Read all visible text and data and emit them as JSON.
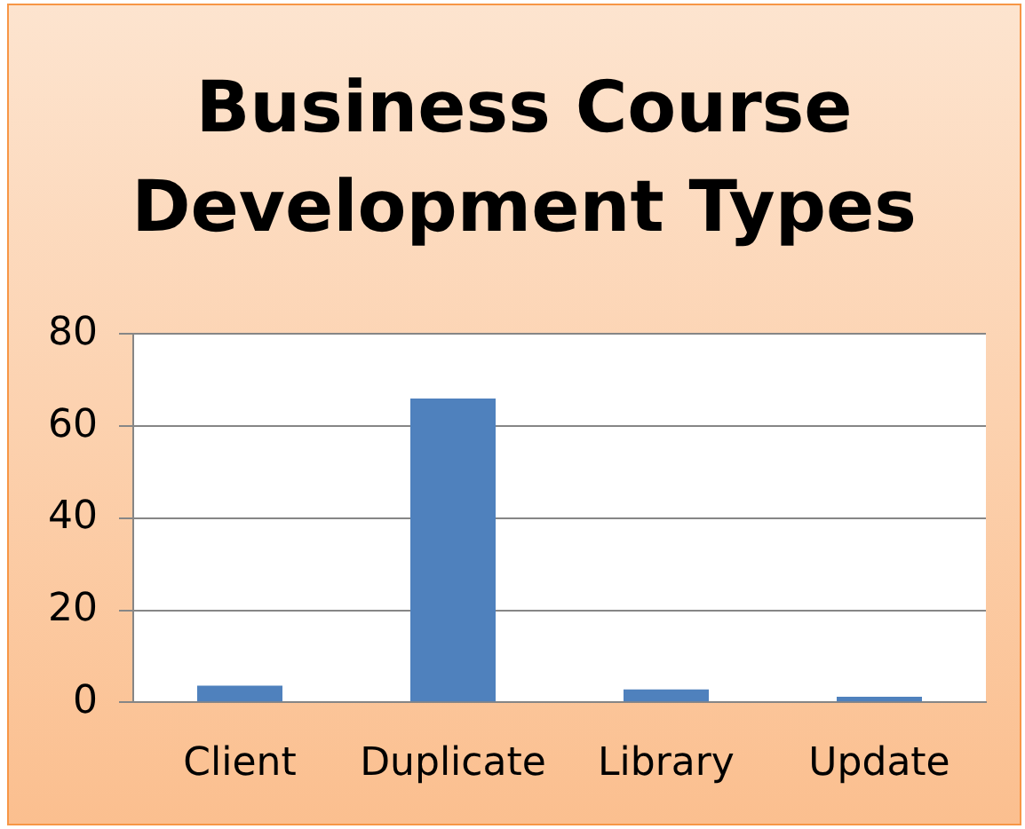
{
  "chart_data": {
    "type": "bar",
    "title": "Business Course Development Types",
    "categories": [
      "Client",
      "Duplicate",
      "Library",
      "Update"
    ],
    "values": [
      3.6,
      66,
      2.8,
      1.2
    ],
    "color": "#4f81bd",
    "ylim": [
      0,
      80
    ],
    "yticks": [
      0,
      20,
      40,
      60,
      80
    ],
    "grid": "y"
  }
}
